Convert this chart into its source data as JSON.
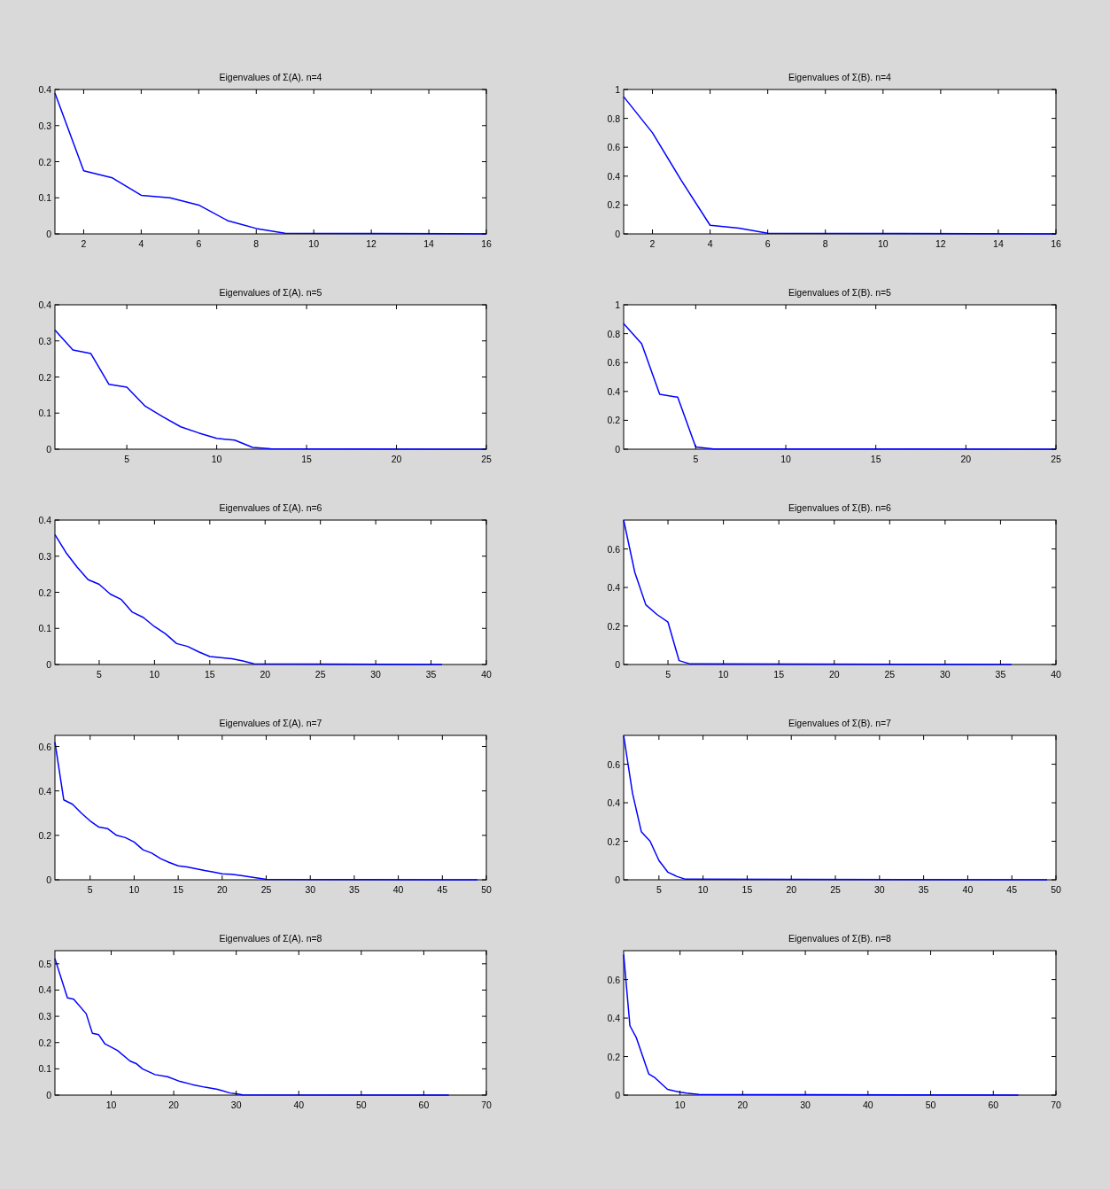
{
  "chart_data": [
    {
      "type": "line",
      "title": "Eigenvalues of Σ(A). n=4",
      "xlim": [
        1,
        16
      ],
      "xticks": [
        2,
        4,
        6,
        8,
        10,
        12,
        14,
        16
      ],
      "ylim": [
        0,
        0.4
      ],
      "yticks": [
        0,
        0.1,
        0.2,
        0.3,
        0.4
      ],
      "series": [
        {
          "color": "#0000ff",
          "x": [
            1,
            2,
            3,
            4,
            5,
            6,
            7,
            8,
            9,
            16
          ],
          "values": [
            0.39,
            0.175,
            0.155,
            0.107,
            0.1,
            0.08,
            0.037,
            0.015,
            0.002,
            0
          ]
        }
      ]
    },
    {
      "type": "line",
      "title": "Eigenvalues of Σ(B). n=4",
      "xlim": [
        1,
        16
      ],
      "xticks": [
        2,
        4,
        6,
        8,
        10,
        12,
        14,
        16
      ],
      "ylim": [
        0,
        1
      ],
      "yticks": [
        0,
        0.2,
        0.4,
        0.6,
        0.8,
        1
      ],
      "series": [
        {
          "color": "#0000ff",
          "x": [
            1,
            2,
            3,
            4,
            5,
            6,
            16
          ],
          "values": [
            0.95,
            0.7,
            0.37,
            0.06,
            0.04,
            0.005,
            0
          ]
        }
      ]
    },
    {
      "type": "line",
      "title": "Eigenvalues of Σ(A). n=5",
      "xlim": [
        1,
        25
      ],
      "xticks": [
        5,
        10,
        15,
        20,
        25
      ],
      "ylim": [
        0,
        0.4
      ],
      "yticks": [
        0,
        0.1,
        0.2,
        0.3,
        0.4
      ],
      "series": [
        {
          "color": "#0000ff",
          "x": [
            1,
            2,
            3,
            4,
            5,
            6,
            7,
            8,
            9,
            10,
            11,
            12,
            13,
            25
          ],
          "values": [
            0.33,
            0.275,
            0.265,
            0.18,
            0.172,
            0.12,
            0.09,
            0.062,
            0.045,
            0.03,
            0.025,
            0.005,
            0.001,
            0
          ]
        }
      ]
    },
    {
      "type": "line",
      "title": "Eigenvalues of Σ(B). n=5",
      "xlim": [
        1,
        25
      ],
      "xticks": [
        5,
        10,
        15,
        20,
        25
      ],
      "ylim": [
        0,
        1
      ],
      "yticks": [
        0,
        0.2,
        0.4,
        0.6,
        0.8,
        1
      ],
      "series": [
        {
          "color": "#0000ff",
          "x": [
            1,
            2,
            3,
            4,
            5,
            6,
            25
          ],
          "values": [
            0.87,
            0.73,
            0.38,
            0.36,
            0.015,
            0.002,
            0
          ]
        }
      ]
    },
    {
      "type": "line",
      "title": "Eigenvalues of Σ(A). n=6",
      "xlim": [
        1,
        40
      ],
      "xticks": [
        5,
        10,
        15,
        20,
        25,
        30,
        35,
        40
      ],
      "ylim": [
        0,
        0.4
      ],
      "yticks": [
        0,
        0.1,
        0.2,
        0.3,
        0.4
      ],
      "series": [
        {
          "color": "#0000ff",
          "x": [
            1,
            2,
            3,
            4,
            5,
            6,
            7,
            8,
            9,
            10,
            11,
            12,
            13,
            14,
            15,
            16,
            17,
            18,
            19,
            36
          ],
          "values": [
            0.36,
            0.31,
            0.27,
            0.235,
            0.222,
            0.195,
            0.18,
            0.145,
            0.13,
            0.105,
            0.085,
            0.058,
            0.05,
            0.035,
            0.022,
            0.019,
            0.016,
            0.01,
            0.002,
            0
          ]
        }
      ]
    },
    {
      "type": "line",
      "title": "Eigenvalues of Σ(B). n=6",
      "xlim": [
        1,
        40
      ],
      "xticks": [
        5,
        10,
        15,
        20,
        25,
        30,
        35,
        40
      ],
      "ylim": [
        0,
        0.75
      ],
      "yticks": [
        0,
        0.2,
        0.4,
        0.6
      ],
      "series": [
        {
          "color": "#0000ff",
          "x": [
            1,
            2,
            3,
            4,
            5,
            6,
            7,
            36
          ],
          "values": [
            0.75,
            0.48,
            0.31,
            0.26,
            0.22,
            0.02,
            0.003,
            0
          ]
        }
      ]
    },
    {
      "type": "line",
      "title": "Eigenvalues of Σ(A). n=7",
      "xlim": [
        1,
        50
      ],
      "xticks": [
        5,
        10,
        15,
        20,
        25,
        30,
        35,
        40,
        45,
        50
      ],
      "ylim": [
        0,
        0.65
      ],
      "yticks": [
        0,
        0.2,
        0.4,
        0.6
      ],
      "series": [
        {
          "color": "#0000ff",
          "x": [
            1,
            2,
            3,
            4,
            5,
            6,
            7,
            8,
            9,
            10,
            11,
            12,
            13,
            14,
            15,
            16,
            17,
            18,
            19,
            20,
            21,
            22,
            23,
            24,
            25,
            49
          ],
          "values": [
            0.62,
            0.36,
            0.34,
            0.3,
            0.265,
            0.237,
            0.23,
            0.2,
            0.19,
            0.17,
            0.135,
            0.12,
            0.095,
            0.078,
            0.063,
            0.058,
            0.05,
            0.042,
            0.035,
            0.027,
            0.025,
            0.02,
            0.014,
            0.008,
            0.002,
            0
          ]
        }
      ]
    },
    {
      "type": "line",
      "title": "Eigenvalues of Σ(B). n=7",
      "xlim": [
        1,
        50
      ],
      "xticks": [
        5,
        10,
        15,
        20,
        25,
        30,
        35,
        40,
        45,
        50
      ],
      "ylim": [
        0,
        0.75
      ],
      "yticks": [
        0,
        0.2,
        0.4,
        0.6
      ],
      "series": [
        {
          "color": "#0000ff",
          "x": [
            1,
            2,
            3,
            4,
            5,
            6,
            7,
            8,
            49
          ],
          "values": [
            0.75,
            0.45,
            0.25,
            0.2,
            0.1,
            0.04,
            0.018,
            0.003,
            0
          ]
        }
      ]
    },
    {
      "type": "line",
      "title": "Eigenvalues of Σ(A). n=8",
      "xlim": [
        1,
        70
      ],
      "xticks": [
        10,
        20,
        30,
        40,
        50,
        60,
        70
      ],
      "ylim": [
        0,
        0.55
      ],
      "yticks": [
        0,
        0.1,
        0.2,
        0.3,
        0.4,
        0.5
      ],
      "series": [
        {
          "color": "#0000ff",
          "x": [
            1,
            3,
            4,
            6,
            7,
            8,
            9,
            11,
            13,
            14,
            15,
            17,
            19,
            21,
            23,
            25,
            27,
            29,
            30,
            31,
            64
          ],
          "values": [
            0.52,
            0.37,
            0.365,
            0.31,
            0.235,
            0.23,
            0.195,
            0.17,
            0.13,
            0.12,
            0.1,
            0.078,
            0.07,
            0.052,
            0.04,
            0.03,
            0.022,
            0.008,
            0.005,
            0.001,
            0
          ]
        }
      ]
    },
    {
      "type": "line",
      "title": "Eigenvalues of Σ(B). n=8",
      "xlim": [
        1,
        70
      ],
      "xticks": [
        10,
        20,
        30,
        40,
        50,
        60,
        70
      ],
      "ylim": [
        0,
        0.75
      ],
      "yticks": [
        0,
        0.2,
        0.4,
        0.6
      ],
      "series": [
        {
          "color": "#0000ff",
          "x": [
            1,
            2,
            3,
            5,
            6,
            8,
            10,
            11,
            13,
            64
          ],
          "values": [
            0.73,
            0.36,
            0.3,
            0.11,
            0.09,
            0.03,
            0.015,
            0.01,
            0.003,
            0
          ]
        }
      ]
    }
  ]
}
